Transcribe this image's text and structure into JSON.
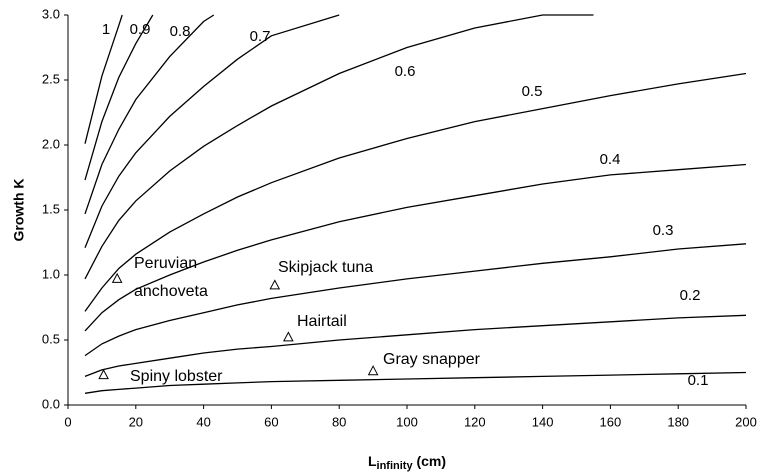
{
  "chart_data": {
    "type": "line",
    "ylabel": "Growth K",
    "xlabel": {
      "main": "L",
      "sub": "infinity",
      "unit": "(cm)"
    },
    "xlim": [
      0,
      200
    ],
    "xticks": [
      0,
      20,
      40,
      60,
      80,
      100,
      120,
      140,
      160,
      180,
      200
    ],
    "ylim": [
      0,
      3
    ],
    "yticks": [
      {
        "value": 0,
        "label": "0.0"
      },
      0.5,
      {
        "value": 1,
        "label": "1.0"
      },
      1.5,
      {
        "value": 2,
        "label": "2.0"
      },
      2.5,
      {
        "value": 3,
        "label": "3.0"
      }
    ],
    "color": "#000000",
    "series": [
      {
        "name": "0.1",
        "x": [
          5,
          10,
          15,
          20,
          30,
          40,
          50,
          60,
          80,
          100,
          120,
          140,
          160,
          180,
          200
        ],
        "values": [
          0.09,
          0.11,
          0.12,
          0.13,
          0.15,
          0.16,
          0.17,
          0.18,
          0.19,
          0.2,
          0.21,
          0.22,
          0.23,
          0.24,
          0.25
        ]
      },
      {
        "name": "0.2",
        "x": [
          5,
          10,
          15,
          20,
          30,
          40,
          50,
          60,
          80,
          100,
          120,
          140,
          160,
          180,
          200
        ],
        "values": [
          0.22,
          0.27,
          0.3,
          0.32,
          0.36,
          0.4,
          0.43,
          0.45,
          0.5,
          0.54,
          0.58,
          0.61,
          0.64,
          0.67,
          0.69
        ]
      },
      {
        "name": "0.3",
        "x": [
          5,
          10,
          15,
          20,
          30,
          40,
          50,
          60,
          80,
          100,
          120,
          140,
          160,
          180,
          200
        ],
        "values": [
          0.38,
          0.47,
          0.53,
          0.58,
          0.65,
          0.71,
          0.77,
          0.82,
          0.9,
          0.97,
          1.03,
          1.09,
          1.14,
          1.2,
          1.24
        ]
      },
      {
        "name": "0.4",
        "x": [
          5,
          10,
          15,
          20,
          30,
          40,
          50,
          60,
          80,
          100,
          120,
          140,
          160,
          180,
          200
        ],
        "values": [
          0.57,
          0.71,
          0.81,
          0.89,
          1.0,
          1.1,
          1.19,
          1.27,
          1.41,
          1.52,
          1.61,
          1.7,
          1.77,
          1.81,
          1.85
        ]
      },
      {
        "name": "0.5",
        "x": [
          5,
          10,
          15,
          20,
          30,
          40,
          50,
          60,
          80,
          100,
          120,
          140,
          160,
          180,
          200
        ],
        "values": [
          0.72,
          0.9,
          1.05,
          1.16,
          1.33,
          1.47,
          1.6,
          1.71,
          1.9,
          2.05,
          2.18,
          2.28,
          2.38,
          2.47,
          2.55
        ]
      },
      {
        "name": "0.6",
        "x": [
          5,
          10,
          15,
          20,
          30,
          40,
          50,
          60,
          80,
          100,
          120,
          140,
          155
        ],
        "values": [
          0.97,
          1.22,
          1.42,
          1.57,
          1.8,
          1.99,
          2.15,
          2.3,
          2.55,
          2.75,
          2.9,
          3.0,
          3.0
        ]
      },
      {
        "name": "0.7",
        "x": [
          5,
          10,
          15,
          20,
          30,
          40,
          50,
          60,
          80
        ],
        "values": [
          1.21,
          1.53,
          1.76,
          1.94,
          2.22,
          2.45,
          2.66,
          2.84,
          3.0
        ]
      },
      {
        "name": "0.8",
        "x": [
          5,
          10,
          15,
          20,
          30,
          40,
          43
        ],
        "values": [
          1.47,
          1.85,
          2.12,
          2.35,
          2.68,
          2.95,
          3.0
        ]
      },
      {
        "name": "0.9",
        "x": [
          5,
          10,
          15,
          20,
          25
        ],
        "values": [
          1.73,
          2.18,
          2.52,
          2.78,
          3.0
        ]
      },
      {
        "name": "1",
        "x": [
          5,
          10,
          15,
          16
        ],
        "values": [
          2.01,
          2.53,
          2.92,
          3.0
        ]
      }
    ],
    "points": {
      "names": [
        "Peruvian anchoveta",
        "Skipjack tuna",
        "Hairtail",
        "Spiny lobster",
        "Gray snapper"
      ],
      "x": [
        14.5,
        61,
        65,
        10.5,
        90
      ],
      "values": [
        0.97,
        0.92,
        0.52,
        0.23,
        0.26
      ]
    }
  }
}
